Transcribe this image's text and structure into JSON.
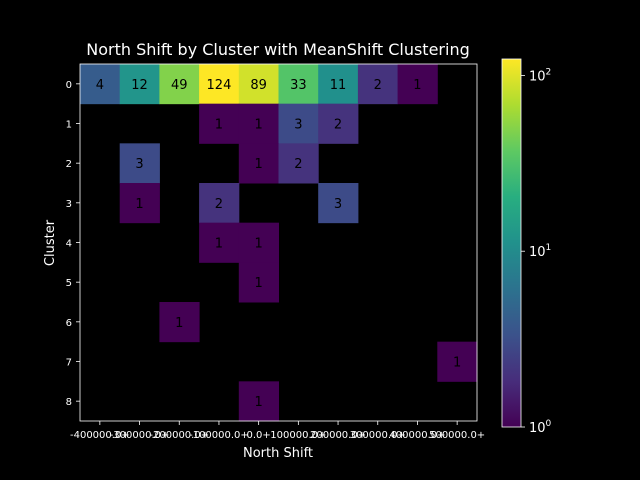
{
  "chart_data": {
    "type": "heatmap",
    "title": "North Shift by Cluster with MeanShift Clustering",
    "xlabel": "North Shift",
    "ylabel": "Cluster",
    "x_tick_labels": [
      "-400000.0+",
      "-300000.0+",
      "-200000.0+",
      "-100000.0+",
      "0.0+",
      "100000.0+",
      "200000.0+",
      "300000.0+",
      "400000.0+",
      "500000.0+"
    ],
    "y_tick_labels": [
      "0",
      "1",
      "2",
      "3",
      "4",
      "5",
      "6",
      "7",
      "8"
    ],
    "values": [
      [
        4,
        12,
        49,
        124,
        89,
        33,
        11,
        2,
        1,
        0
      ],
      [
        0,
        0,
        0,
        1,
        1,
        3,
        2,
        0,
        0,
        0
      ],
      [
        0,
        3,
        0,
        0,
        1,
        2,
        0,
        0,
        0,
        0
      ],
      [
        0,
        1,
        0,
        2,
        0,
        0,
        3,
        0,
        0,
        0
      ],
      [
        0,
        0,
        0,
        1,
        1,
        0,
        0,
        0,
        0,
        0
      ],
      [
        0,
        0,
        0,
        0,
        1,
        0,
        0,
        0,
        0,
        0
      ],
      [
        0,
        0,
        1,
        0,
        0,
        0,
        0,
        0,
        0,
        0
      ],
      [
        0,
        0,
        0,
        0,
        0,
        0,
        0,
        0,
        0,
        1
      ],
      [
        0,
        0,
        0,
        0,
        1,
        0,
        0,
        0,
        0,
        0
      ]
    ],
    "color_scale": "log",
    "colormap": "viridis",
    "colorbar_range": [
      1,
      124
    ],
    "colorbar_ticks": [
      {
        "value": 100,
        "base": "10",
        "exp": "2"
      },
      {
        "value": 10,
        "base": "10",
        "exp": "1"
      },
      {
        "value": 1,
        "base": "10",
        "exp": "0"
      }
    ],
    "background": "#000000",
    "foreground": "#ffffff"
  }
}
